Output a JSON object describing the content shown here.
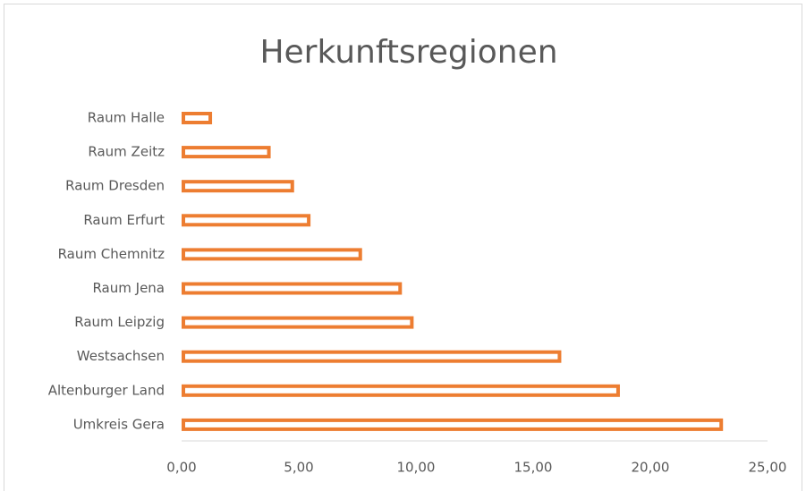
{
  "chart_data": {
    "type": "bar",
    "orientation": "horizontal",
    "title": "Herkunftsregionen",
    "categories": [
      "Raum Halle",
      "Raum Zeitz",
      "Raum Dresden",
      "Raum Erfurt",
      "Raum Chemnitz",
      "Raum Jena",
      "Raum Leipzig",
      "Westsachsen",
      "Altenburger Land",
      "Umkreis Gera"
    ],
    "values": [
      1.3,
      3.8,
      4.8,
      5.5,
      7.7,
      9.4,
      9.9,
      16.2,
      18.7,
      23.1
    ],
    "color": "#ed7d31",
    "xlim": [
      0,
      25
    ],
    "xticks": [
      {
        "value": 0,
        "label": "0,00"
      },
      {
        "value": 5,
        "label": "5,00"
      },
      {
        "value": 10,
        "label": "10,00"
      },
      {
        "value": 15,
        "label": "15,00"
      },
      {
        "value": 20,
        "label": "20,00"
      },
      {
        "value": 25,
        "label": "25,00"
      }
    ],
    "grid": false
  }
}
